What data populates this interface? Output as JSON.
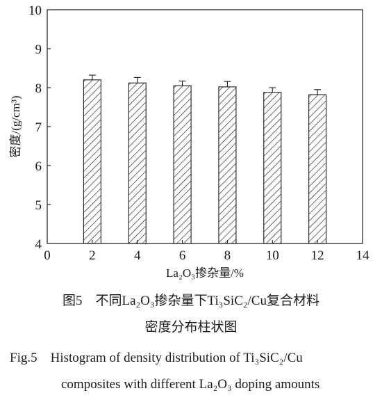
{
  "chart_data": {
    "type": "bar",
    "x": [
      2,
      4,
      6,
      8,
      10,
      12
    ],
    "values": [
      8.2,
      8.12,
      8.05,
      8.02,
      7.88,
      7.82
    ],
    "errors": [
      0.12,
      0.14,
      0.12,
      0.14,
      0.12,
      0.13
    ],
    "xlim": [
      0,
      14
    ],
    "ylim": [
      4,
      10
    ],
    "xticks": [
      "0",
      "2",
      "4",
      "6",
      "8",
      "10",
      "12",
      "14"
    ],
    "yticks": [
      "4",
      "5",
      "6",
      "7",
      "8",
      "9",
      "10"
    ],
    "xlabel": "La₂O₃掺杂量/%",
    "ylabel": "密度/(g/cm³)",
    "bar_fill": "hatch",
    "grid": false
  },
  "caption": {
    "cn_line1": "图5　不同La₂O₃掺杂量下Ti₃SiC₂/Cu复合材料",
    "cn_line2": "密度分布柱状图",
    "en_line1": "Fig.5　Histogram of density distribution of Ti₃SiC₂/Cu",
    "en_line2": "composites with different La₂O₃ doping amounts"
  }
}
